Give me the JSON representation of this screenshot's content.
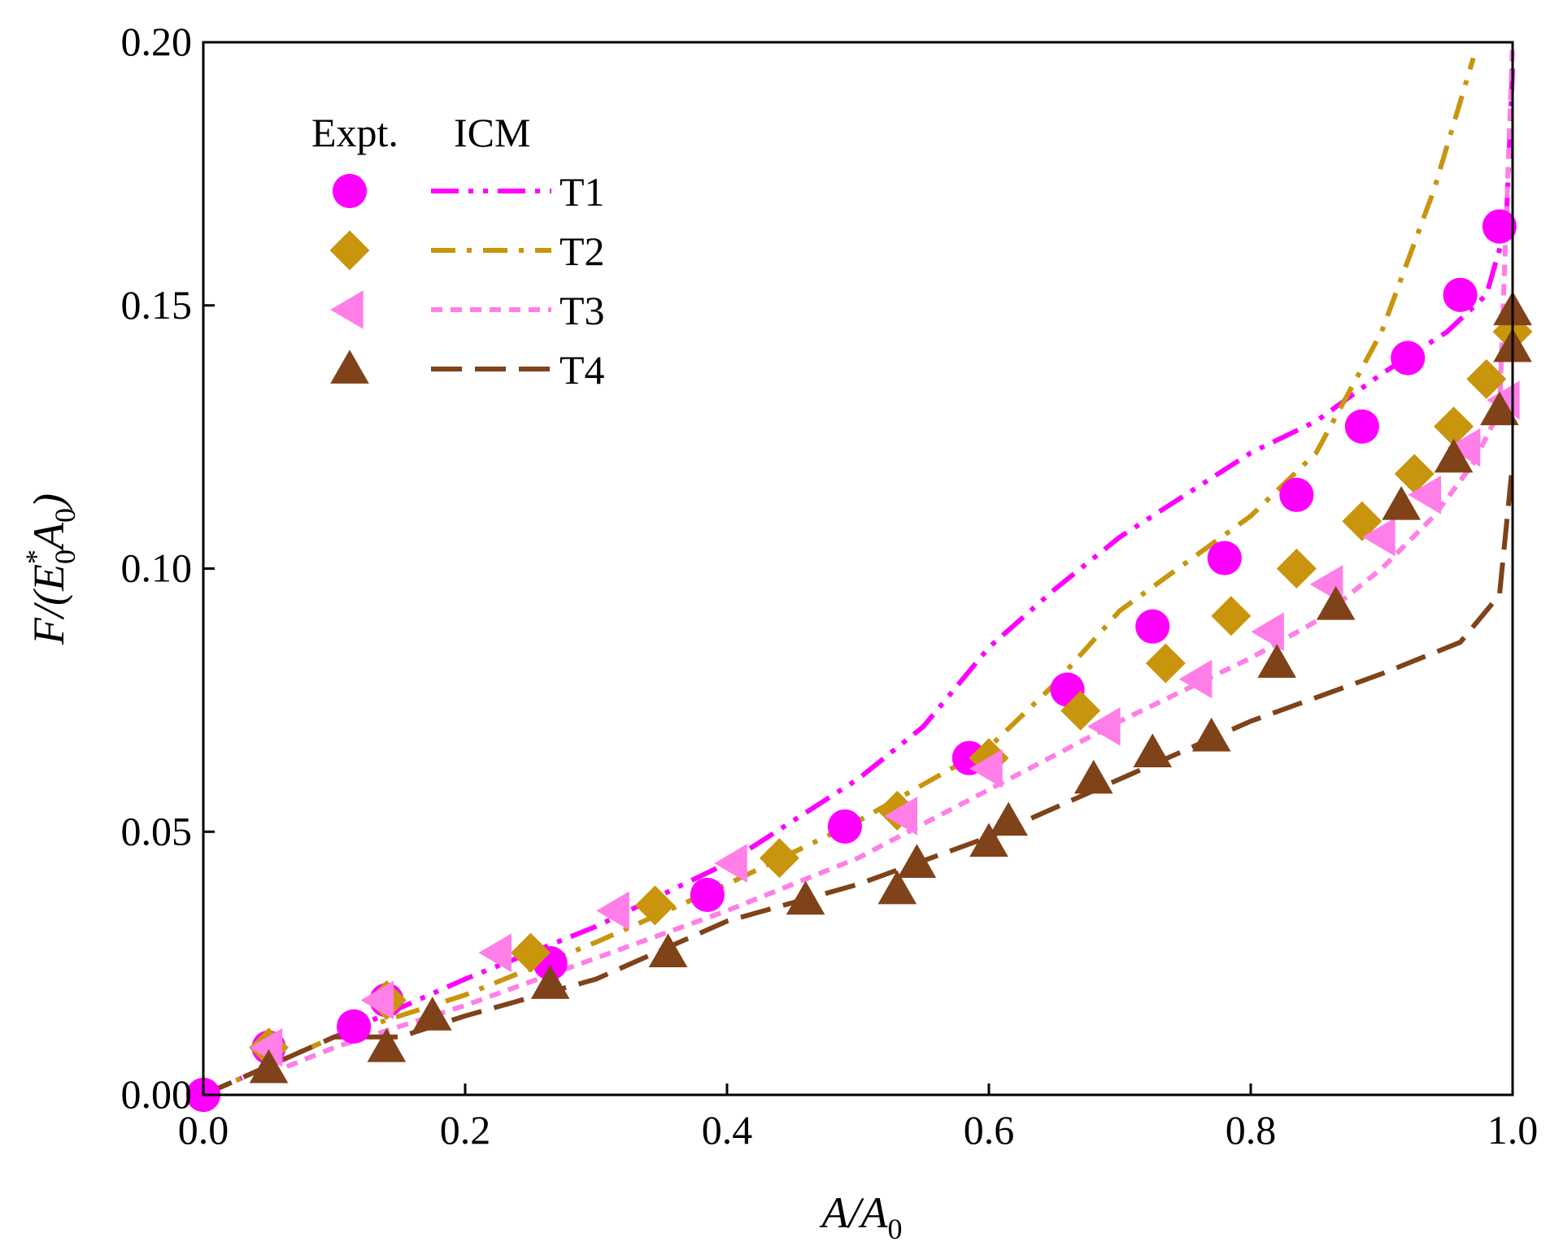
{
  "chart_data": {
    "type": "scatter",
    "title": "",
    "xlabel": {
      "main": "A/A",
      "sub": "0"
    },
    "ylabel": {
      "prefix": "F/(E",
      "sub": "0",
      "sup": "*",
      "mid": "A",
      "sub2": "0",
      "suffix": ")"
    },
    "xlim": [
      0.0,
      1.0
    ],
    "ylim": [
      0.0,
      0.2
    ],
    "xticks": [
      "0.0",
      "0.2",
      "0.4",
      "0.6",
      "0.8",
      "1.0"
    ],
    "yticks": [
      "0.00",
      "0.05",
      "0.10",
      "0.15",
      "0.20"
    ],
    "xtick_values": [
      0.0,
      0.2,
      0.4,
      0.6,
      0.8,
      1.0
    ],
    "ytick_values": [
      0.0,
      0.05,
      0.1,
      0.15,
      0.2
    ],
    "legend": {
      "header_expt": "Expt.",
      "header_model": "ICM",
      "position": "top-left"
    },
    "series": [
      {
        "name": "T1",
        "color": "#ff00ff",
        "marker": "circle",
        "dash": "dashdotdot",
        "expt": [
          [
            0.0,
            0.0
          ],
          [
            0.05,
            0.009
          ],
          [
            0.115,
            0.013
          ],
          [
            0.14,
            0.018
          ],
          [
            0.265,
            0.025
          ],
          [
            0.385,
            0.038
          ],
          [
            0.49,
            0.051
          ],
          [
            0.585,
            0.064
          ],
          [
            0.66,
            0.077
          ],
          [
            0.725,
            0.089
          ],
          [
            0.78,
            0.102
          ],
          [
            0.835,
            0.114
          ],
          [
            0.885,
            0.127
          ],
          [
            0.92,
            0.14
          ],
          [
            0.96,
            0.152
          ],
          [
            0.99,
            0.165
          ]
        ],
        "model": [
          [
            0.0,
            0.0
          ],
          [
            0.1,
            0.011
          ],
          [
            0.2,
            0.022
          ],
          [
            0.3,
            0.032
          ],
          [
            0.4,
            0.044
          ],
          [
            0.5,
            0.06
          ],
          [
            0.55,
            0.07
          ],
          [
            0.6,
            0.085
          ],
          [
            0.65,
            0.096
          ],
          [
            0.7,
            0.106
          ],
          [
            0.75,
            0.114
          ],
          [
            0.8,
            0.122
          ],
          [
            0.85,
            0.128
          ],
          [
            0.9,
            0.137
          ],
          [
            0.95,
            0.145
          ],
          [
            0.98,
            0.152
          ],
          [
            0.995,
            0.165
          ],
          [
            1.0,
            0.195
          ]
        ]
      },
      {
        "name": "T2",
        "color": "#c8950c",
        "marker": "diamond",
        "dash": "dashdot",
        "expt": [
          [
            0.05,
            0.009
          ],
          [
            0.14,
            0.018
          ],
          [
            0.25,
            0.027
          ],
          [
            0.345,
            0.036
          ],
          [
            0.44,
            0.045
          ],
          [
            0.53,
            0.054
          ],
          [
            0.6,
            0.064
          ],
          [
            0.67,
            0.073
          ],
          [
            0.735,
            0.082
          ],
          [
            0.785,
            0.091
          ],
          [
            0.835,
            0.1
          ],
          [
            0.885,
            0.109
          ],
          [
            0.925,
            0.118
          ],
          [
            0.955,
            0.127
          ],
          [
            0.98,
            0.136
          ],
          [
            1.0,
            0.145
          ]
        ],
        "model": [
          [
            0.0,
            0.0
          ],
          [
            0.1,
            0.011
          ],
          [
            0.2,
            0.019
          ],
          [
            0.3,
            0.029
          ],
          [
            0.4,
            0.04
          ],
          [
            0.5,
            0.052
          ],
          [
            0.6,
            0.066
          ],
          [
            0.65,
            0.078
          ],
          [
            0.7,
            0.092
          ],
          [
            0.75,
            0.101
          ],
          [
            0.8,
            0.11
          ],
          [
            0.85,
            0.122
          ],
          [
            0.9,
            0.145
          ],
          [
            0.94,
            0.172
          ],
          [
            0.97,
            0.197
          ]
        ]
      },
      {
        "name": "T3",
        "color": "#ff7ee8",
        "marker": "triangle-left",
        "dash": "shortdash",
        "expt": [
          [
            0.05,
            0.009
          ],
          [
            0.135,
            0.018
          ],
          [
            0.225,
            0.027
          ],
          [
            0.315,
            0.035
          ],
          [
            0.405,
            0.044
          ],
          [
            0.535,
            0.053
          ],
          [
            0.6,
            0.062
          ],
          [
            0.69,
            0.07
          ],
          [
            0.76,
            0.079
          ],
          [
            0.815,
            0.088
          ],
          [
            0.86,
            0.097
          ],
          [
            0.9,
            0.106
          ],
          [
            0.935,
            0.114
          ],
          [
            0.965,
            0.123
          ],
          [
            0.995,
            0.132
          ]
        ],
        "model": [
          [
            0.05,
            0.004
          ],
          [
            0.1,
            0.009
          ],
          [
            0.2,
            0.017
          ],
          [
            0.3,
            0.026
          ],
          [
            0.4,
            0.035
          ],
          [
            0.5,
            0.045
          ],
          [
            0.6,
            0.058
          ],
          [
            0.7,
            0.071
          ],
          [
            0.8,
            0.083
          ],
          [
            0.85,
            0.09
          ],
          [
            0.9,
            0.1
          ],
          [
            0.94,
            0.11
          ],
          [
            0.97,
            0.12
          ],
          [
            0.99,
            0.13
          ],
          [
            1.0,
            0.2
          ]
        ]
      },
      {
        "name": "T4",
        "color": "#7f4219",
        "marker": "triangle-up",
        "dash": "longdash",
        "expt": [
          [
            0.05,
            0.005
          ],
          [
            0.14,
            0.009
          ],
          [
            0.175,
            0.015
          ],
          [
            0.265,
            0.021
          ],
          [
            0.355,
            0.027
          ],
          [
            0.46,
            0.037
          ],
          [
            0.53,
            0.039
          ],
          [
            0.545,
            0.044
          ],
          [
            0.6,
            0.048
          ],
          [
            0.615,
            0.052
          ],
          [
            0.68,
            0.06
          ],
          [
            0.725,
            0.065
          ],
          [
            0.77,
            0.068
          ],
          [
            0.82,
            0.082
          ],
          [
            0.865,
            0.093
          ],
          [
            0.915,
            0.112
          ],
          [
            0.955,
            0.121
          ],
          [
            0.99,
            0.13
          ],
          [
            1.0,
            0.142
          ],
          [
            1.0,
            0.149
          ]
        ],
        "model": [
          [
            0.0,
            0.0
          ],
          [
            0.1,
            0.011
          ],
          [
            0.15,
            0.011
          ],
          [
            0.2,
            0.015
          ],
          [
            0.3,
            0.022
          ],
          [
            0.4,
            0.033
          ],
          [
            0.5,
            0.04
          ],
          [
            0.6,
            0.049
          ],
          [
            0.7,
            0.06
          ],
          [
            0.8,
            0.071
          ],
          [
            0.9,
            0.08
          ],
          [
            0.96,
            0.086
          ],
          [
            0.99,
            0.095
          ],
          [
            1.0,
            0.12
          ]
        ]
      }
    ]
  }
}
